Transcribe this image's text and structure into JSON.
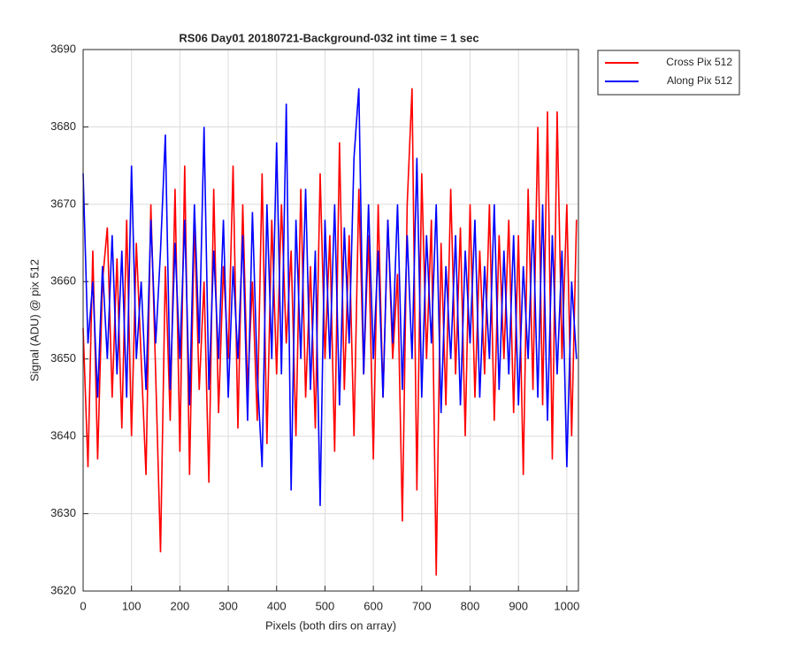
{
  "chart_data": {
    "type": "line",
    "title": "RS06 Day01 20180721-Background-032 int time = 1 sec",
    "xlabel": "Pixels (both dirs on array)",
    "ylabel": "Signal (ADU) @ pix 512",
    "x": [
      0,
      10,
      20,
      30,
      40,
      50,
      60,
      70,
      80,
      90,
      100,
      110,
      120,
      130,
      140,
      150,
      160,
      170,
      180,
      190,
      200,
      210,
      220,
      230,
      240,
      250,
      260,
      270,
      280,
      290,
      300,
      310,
      320,
      330,
      340,
      350,
      360,
      370,
      380,
      390,
      400,
      410,
      420,
      430,
      440,
      450,
      460,
      470,
      480,
      490,
      500,
      510,
      520,
      530,
      540,
      550,
      560,
      570,
      580,
      590,
      600,
      610,
      620,
      630,
      640,
      650,
      660,
      670,
      680,
      690,
      700,
      710,
      720,
      730,
      740,
      750,
      760,
      770,
      780,
      790,
      800,
      810,
      820,
      830,
      840,
      850,
      860,
      870,
      880,
      890,
      900,
      910,
      920,
      930,
      940,
      950,
      960,
      970,
      980,
      990,
      1000,
      1010,
      1020
    ],
    "series": [
      {
        "name": "Cross Pix 512",
        "color": "#ff0000",
        "values": [
          3654,
          3636,
          3664,
          3637,
          3660,
          3667,
          3645,
          3663,
          3641,
          3668,
          3640,
          3665,
          3650,
          3635,
          3670,
          3648,
          3625,
          3662,
          3642,
          3672,
          3638,
          3675,
          3635,
          3668,
          3646,
          3660,
          3634,
          3672,
          3643,
          3662,
          3650,
          3675,
          3641,
          3670,
          3646,
          3660,
          3642,
          3674,
          3639,
          3668,
          3648,
          3670,
          3652,
          3664,
          3640,
          3672,
          3645,
          3662,
          3641,
          3674,
          3650,
          3666,
          3638,
          3678,
          3646,
          3666,
          3640,
          3672,
          3648,
          3666,
          3637,
          3670,
          3645,
          3668,
          3650,
          3661,
          3629,
          3670,
          3685,
          3633,
          3674,
          3650,
          3668,
          3622,
          3665,
          3644,
          3672,
          3648,
          3667,
          3640,
          3670,
          3645,
          3664,
          3648,
          3670,
          3642,
          3666,
          3650,
          3668,
          3643,
          3666,
          3635,
          3672,
          3646,
          3680,
          3644,
          3682,
          3637,
          3682,
          3650,
          3670,
          3640,
          3668
        ]
      },
      {
        "name": "Along Pix 512",
        "color": "#0000ff",
        "values": [
          3674,
          3652,
          3660,
          3645,
          3662,
          3650,
          3666,
          3648,
          3664,
          3645,
          3675,
          3650,
          3660,
          3646,
          3668,
          3652,
          3664,
          3679,
          3646,
          3665,
          3650,
          3668,
          3644,
          3670,
          3652,
          3680,
          3646,
          3664,
          3650,
          3668,
          3645,
          3662,
          3650,
          3666,
          3642,
          3669,
          3648,
          3636,
          3670,
          3650,
          3678,
          3648,
          3683,
          3633,
          3668,
          3650,
          3672,
          3646,
          3664,
          3631,
          3668,
          3650,
          3670,
          3644,
          3667,
          3652,
          3676,
          3685,
          3648,
          3670,
          3650,
          3664,
          3645,
          3668,
          3652,
          3670,
          3646,
          3666,
          3650,
          3676,
          3645,
          3666,
          3652,
          3670,
          3643,
          3662,
          3650,
          3666,
          3644,
          3664,
          3652,
          3668,
          3645,
          3662,
          3650,
          3670,
          3646,
          3664,
          3648,
          3666,
          3644,
          3662,
          3650,
          3668,
          3645,
          3670,
          3642,
          3666,
          3648,
          3664,
          3636,
          3660,
          3650
        ]
      }
    ],
    "xlim": [
      0,
      1024
    ],
    "ylim": [
      3620,
      3690
    ],
    "xticks": [
      0,
      100,
      200,
      300,
      400,
      500,
      600,
      700,
      800,
      900,
      1000
    ],
    "yticks": [
      3620,
      3630,
      3640,
      3650,
      3660,
      3670,
      3680,
      3690
    ],
    "grid": true,
    "legend": "outside-top-right"
  }
}
